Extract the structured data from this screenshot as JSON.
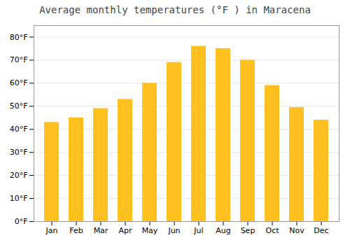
{
  "chart_data": {
    "type": "bar",
    "title": "Average monthly temperatures (°F ) in Maracena",
    "categories": [
      "Jan",
      "Feb",
      "Mar",
      "Apr",
      "May",
      "Jun",
      "Jul",
      "Aug",
      "Sep",
      "Oct",
      "Nov",
      "Dec"
    ],
    "values": [
      43,
      45,
      49,
      53,
      60,
      69,
      76,
      75,
      70,
      59,
      49.5,
      44
    ],
    "color": "#FFC020",
    "ylim": [
      0,
      85
    ],
    "yticks": [
      {
        "value": 0,
        "label": "0°F"
      },
      {
        "value": 10,
        "label": "10°F"
      },
      {
        "value": 20,
        "label": "20°F"
      },
      {
        "value": 30,
        "label": "30°F"
      },
      {
        "value": 40,
        "label": "40°F"
      },
      {
        "value": 50,
        "label": "50°F"
      },
      {
        "value": 60,
        "label": "60°F"
      },
      {
        "value": 70,
        "label": "70°F"
      },
      {
        "value": 80,
        "label": "80°F"
      }
    ],
    "grid": true
  }
}
